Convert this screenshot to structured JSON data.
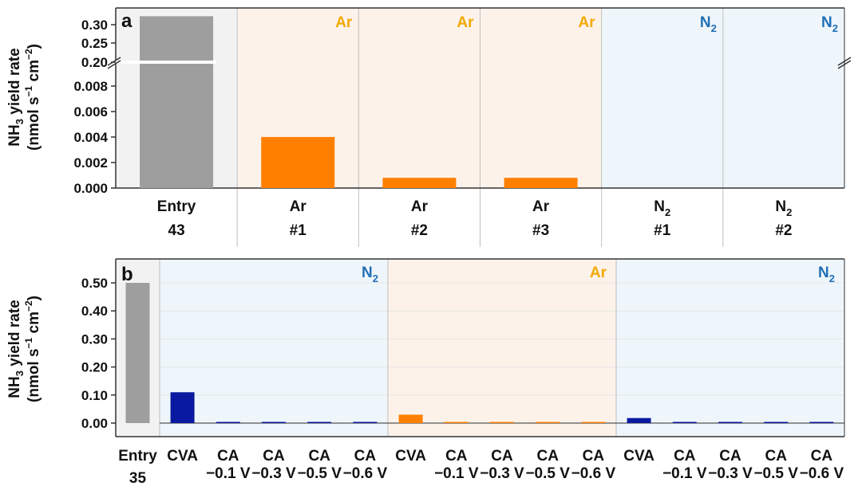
{
  "colors": {
    "gray": "#9e9e9e",
    "orange": "#ff8000",
    "navy": "#0a1aa0",
    "ar_text": "#f2a900",
    "n2_text": "#1f6fb6",
    "ar_bg": "#fdf2ea",
    "n2_bg": "#eef6fb",
    "ref_bg": "#f2f2f2"
  },
  "chart_data": [
    {
      "panel": "a",
      "type": "bar",
      "ylabel_line1": "NH",
      "ylabel_line1_sub": "3",
      "ylabel_line1_rest": " yield rate",
      "ylabel_line2": "(nmol s",
      "ylabel_line2_sup1": "−1",
      "ylabel_line2_mid": " cm",
      "ylabel_line2_sup2": "−2",
      "ylabel_line2_end": ")",
      "axis_break": true,
      "lower_ylim": [
        0,
        0.01
      ],
      "lower_ticks": [
        "0.000",
        "0.002",
        "0.004",
        "0.006",
        "0.008"
      ],
      "upper_ticks": [
        "0.20",
        "0.25",
        "0.30"
      ],
      "groups": [
        {
          "type": "ref",
          "label": ""
        },
        {
          "type": "ar",
          "label": "Ar"
        },
        {
          "type": "ar",
          "label": "Ar"
        },
        {
          "type": "ar",
          "label": "Ar"
        },
        {
          "type": "n2",
          "label": "N",
          "label_sub": "2"
        },
        {
          "type": "n2",
          "label": "N",
          "label_sub": "2"
        }
      ],
      "categories": [
        {
          "line1": "Entry",
          "line2": "43"
        },
        {
          "line1": "Ar",
          "line2": "#1"
        },
        {
          "line1": "Ar",
          "line2": "#2"
        },
        {
          "line1": "Ar",
          "line2": "#3"
        },
        {
          "line1": "N",
          "line1_sub": "2",
          "line2": "#1"
        },
        {
          "line1": "N",
          "line1_sub": "2",
          "line2": "#2"
        }
      ],
      "values": [
        0.29,
        0.004,
        0.0008,
        0.0008,
        0.0,
        0.0
      ],
      "bar_colors": [
        "gray",
        "orange",
        "orange",
        "orange",
        "orange",
        "orange"
      ]
    },
    {
      "panel": "b",
      "type": "bar",
      "ylabel_line1": "NH",
      "ylabel_line1_sub": "3",
      "ylabel_line1_rest": " yield rate",
      "ylabel_line2": "(nmol s",
      "ylabel_line2_sup1": "−1",
      "ylabel_line2_mid": " cm",
      "ylabel_line2_sup2": "−2",
      "ylabel_line2_end": ")",
      "ylim": [
        -0.03,
        0.55
      ],
      "ticks": [
        "0.00",
        "0.10",
        "0.20",
        "0.30",
        "0.40",
        "0.50"
      ],
      "groups": [
        {
          "type": "ref",
          "label": ""
        },
        {
          "type": "n2",
          "label": "N",
          "label_sub": "2"
        },
        {
          "type": "ar",
          "label": "Ar"
        },
        {
          "type": "n2",
          "label": "N",
          "label_sub": "2"
        }
      ],
      "categories": [
        {
          "line1": "Entry",
          "line2": "35"
        },
        {
          "line1": "CVA",
          "line2": ""
        },
        {
          "line1": "CA",
          "line2": "−0.1 V"
        },
        {
          "line1": "CA",
          "line2": "−0.3 V"
        },
        {
          "line1": "CA",
          "line2": "−0.5 V"
        },
        {
          "line1": "CA",
          "line2": "−0.6 V"
        },
        {
          "line1": "CVA",
          "line2": ""
        },
        {
          "line1": "CA",
          "line2": "−0.1 V"
        },
        {
          "line1": "CA",
          "line2": "−0.3 V"
        },
        {
          "line1": "CA",
          "line2": "−0.5 V"
        },
        {
          "line1": "CA",
          "line2": "−0.6 V"
        },
        {
          "line1": "CVA",
          "line2": ""
        },
        {
          "line1": "CA",
          "line2": "−0.1 V"
        },
        {
          "line1": "CA",
          "line2": "−0.3 V"
        },
        {
          "line1": "CA",
          "line2": "−0.5 V"
        },
        {
          "line1": "CA",
          "line2": "−0.6 V"
        }
      ],
      "values": [
        0.5,
        0.11,
        0.001,
        0.0,
        0.0,
        0.004,
        0.03,
        0.0,
        0.0,
        0.0,
        0.0,
        0.018,
        0.0,
        0.0,
        0.002,
        0.0
      ],
      "bar_colors": [
        "gray",
        "navy",
        "navy",
        "navy",
        "navy",
        "navy",
        "orange",
        "orange",
        "orange",
        "orange",
        "orange",
        "navy",
        "navy",
        "navy",
        "navy",
        "navy"
      ]
    }
  ]
}
